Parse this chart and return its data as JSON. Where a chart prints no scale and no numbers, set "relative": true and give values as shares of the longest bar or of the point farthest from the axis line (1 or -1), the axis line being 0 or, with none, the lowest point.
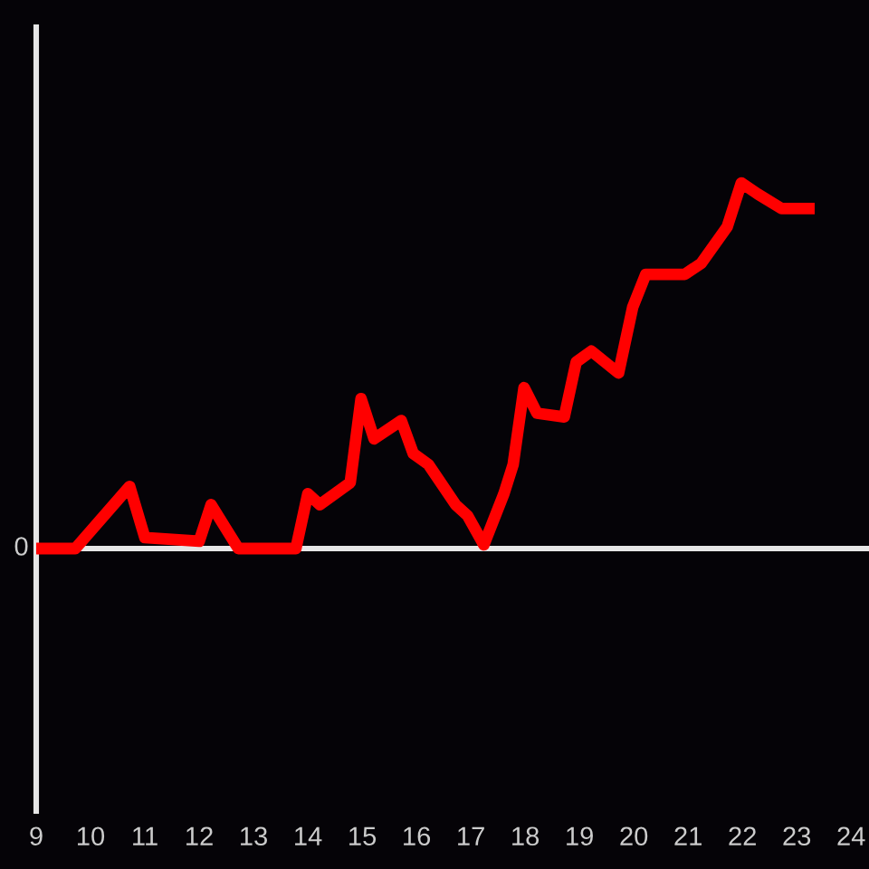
{
  "chart_data": {
    "type": "line",
    "relative": true,
    "x": [
      9.0,
      9.72,
      10.72,
      11.0,
      12.0,
      12.22,
      12.72,
      13.78,
      14.0,
      14.22,
      14.78,
      14.98,
      15.22,
      15.72,
      15.94,
      16.22,
      16.72,
      16.94,
      17.24,
      17.61,
      17.78,
      17.98,
      18.22,
      18.72,
      18.94,
      19.22,
      19.72,
      19.98,
      20.22,
      20.94,
      21.24,
      21.72,
      21.98,
      22.28,
      22.72,
      23.33
    ],
    "values": [
      0,
      0,
      0.17,
      0.03,
      0.02,
      0.12,
      0,
      0,
      0.15,
      0.12,
      0.18,
      0.41,
      0.3,
      0.35,
      0.26,
      0.23,
      0.12,
      0.09,
      0.01,
      0.15,
      0.23,
      0.44,
      0.37,
      0.36,
      0.51,
      0.54,
      0.48,
      0.66,
      0.75,
      0.75,
      0.78,
      0.88,
      1.0,
      0.97,
      0.93,
      0.93
    ],
    "color": "#ff0000",
    "xlim": [
      9,
      24.33
    ],
    "xticks": [
      9,
      10,
      11,
      12,
      13,
      14,
      15,
      16,
      17,
      18,
      19,
      20,
      21,
      22,
      23,
      24
    ],
    "tick_labels": "x",
    "ref_lines": [
      {
        "axis": "y",
        "value": 0,
        "label": "0",
        "color": "#e6e6e6",
        "line_style": "solid"
      }
    ],
    "grid": false,
    "marker": "none",
    "line_style": "solid"
  }
}
